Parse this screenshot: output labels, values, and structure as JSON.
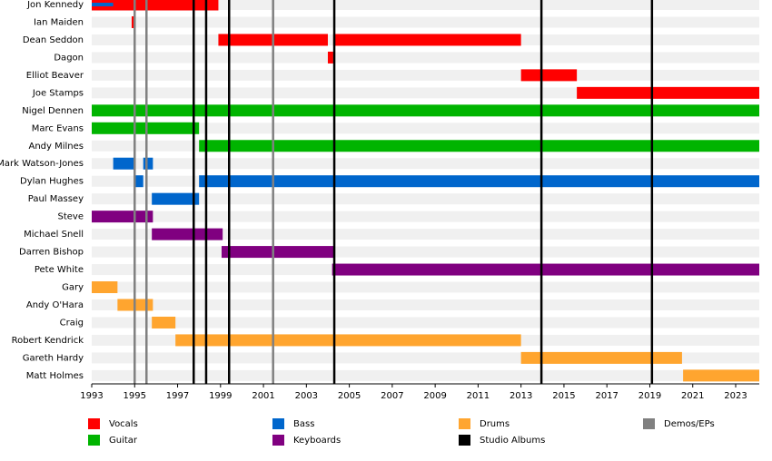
{
  "chart_data": {
    "type": "timeline",
    "xlim": [
      1993,
      2024.1
    ],
    "xticks": [
      1993,
      1995,
      1997,
      1999,
      2001,
      2003,
      2005,
      2007,
      2009,
      2011,
      2013,
      2015,
      2017,
      2019,
      2021,
      2023
    ],
    "roles": [
      {
        "name": "Vocals",
        "color": "#ff0000"
      },
      {
        "name": "Guitar",
        "color": "#00b400"
      },
      {
        "name": "Bass",
        "color": "#0066cc"
      },
      {
        "name": "Keyboards",
        "color": "#800080"
      },
      {
        "name": "Drums",
        "color": "#ffa52f"
      },
      {
        "name": "Studio Albums",
        "color": "#000000"
      },
      {
        "name": "Demos/EPs",
        "color": "#808080"
      }
    ],
    "members": [
      {
        "name": "Jon Kennedy",
        "bars": [
          {
            "role": 0,
            "start": 1993,
            "end": 1998.9
          },
          {
            "role": 2,
            "start": 1993,
            "end": 1994,
            "thin": true
          }
        ]
      },
      {
        "name": "Ian Maiden",
        "bars": [
          {
            "role": 0,
            "start": 1994.86,
            "end": 1995
          }
        ]
      },
      {
        "name": "Dean Seddon",
        "bars": [
          {
            "role": 0,
            "start": 1998.9,
            "end": 2004
          },
          {
            "role": 0,
            "start": 2004.25,
            "end": 2013
          }
        ]
      },
      {
        "name": "Dagon",
        "bars": [
          {
            "role": 0,
            "start": 2004,
            "end": 2004.25
          }
        ]
      },
      {
        "name": "Elliot Beaver",
        "bars": [
          {
            "role": 0,
            "start": 2013,
            "end": 2015.6
          }
        ]
      },
      {
        "name": "Joe Stamps",
        "bars": [
          {
            "role": 0,
            "start": 2015.6,
            "end": 2024.1
          }
        ]
      },
      {
        "name": "Nigel Dennen",
        "bars": [
          {
            "role": 1,
            "start": 1993,
            "end": 2024.1
          }
        ]
      },
      {
        "name": "Marc Evans",
        "bars": [
          {
            "role": 1,
            "start": 1993,
            "end": 1998
          }
        ]
      },
      {
        "name": "Andy Milnes",
        "bars": [
          {
            "role": 1,
            "start": 1998,
            "end": 2024.1
          }
        ]
      },
      {
        "name": "Mark Watson-Jones",
        "bars": [
          {
            "role": 2,
            "start": 1994,
            "end": 1995
          },
          {
            "role": 2,
            "start": 1995.4,
            "end": 1995.85
          }
        ]
      },
      {
        "name": "Dylan Hughes",
        "bars": [
          {
            "role": 2,
            "start": 1995,
            "end": 1995.4
          },
          {
            "role": 2,
            "start": 1998,
            "end": 2024.1
          }
        ]
      },
      {
        "name": "Paul Massey",
        "bars": [
          {
            "role": 2,
            "start": 1995.8,
            "end": 1998
          }
        ]
      },
      {
        "name": "Steve",
        "bars": [
          {
            "role": 3,
            "start": 1993,
            "end": 1995.85
          }
        ]
      },
      {
        "name": "Michael Snell",
        "bars": [
          {
            "role": 3,
            "start": 1995.8,
            "end": 1999.1
          }
        ]
      },
      {
        "name": "Darren Bishop",
        "bars": [
          {
            "role": 3,
            "start": 1999.05,
            "end": 2004.3
          }
        ]
      },
      {
        "name": "Pete White",
        "bars": [
          {
            "role": 3,
            "start": 2004.2,
            "end": 2024.1
          }
        ]
      },
      {
        "name": "Gary",
        "bars": [
          {
            "role": 4,
            "start": 1993,
            "end": 1994.2
          }
        ]
      },
      {
        "name": "Andy O'Hara",
        "bars": [
          {
            "role": 4,
            "start": 1994.2,
            "end": 1995.85
          }
        ]
      },
      {
        "name": "Craig",
        "bars": [
          {
            "role": 4,
            "start": 1995.8,
            "end": 1996.9
          }
        ]
      },
      {
        "name": "Robert Kendrick",
        "bars": [
          {
            "role": 4,
            "start": 1996.9,
            "end": 2013
          }
        ]
      },
      {
        "name": "Gareth Hardy",
        "bars": [
          {
            "role": 4,
            "start": 2013,
            "end": 2020.5
          }
        ]
      },
      {
        "name": "Matt Holmes",
        "bars": [
          {
            "role": 4,
            "start": 2020.55,
            "end": 2024.1
          }
        ]
      }
    ],
    "events": [
      {
        "x": 1995,
        "role": 6
      },
      {
        "x": 1995.55,
        "role": 6
      },
      {
        "x": 2001.45,
        "role": 6
      },
      {
        "x": 1997.75,
        "role": 5
      },
      {
        "x": 1998.33,
        "role": 5
      },
      {
        "x": 1999.4,
        "role": 5
      },
      {
        "x": 2004.3,
        "role": 5
      },
      {
        "x": 2013.95,
        "role": 5
      },
      {
        "x": 2019.1,
        "role": 5
      }
    ]
  }
}
